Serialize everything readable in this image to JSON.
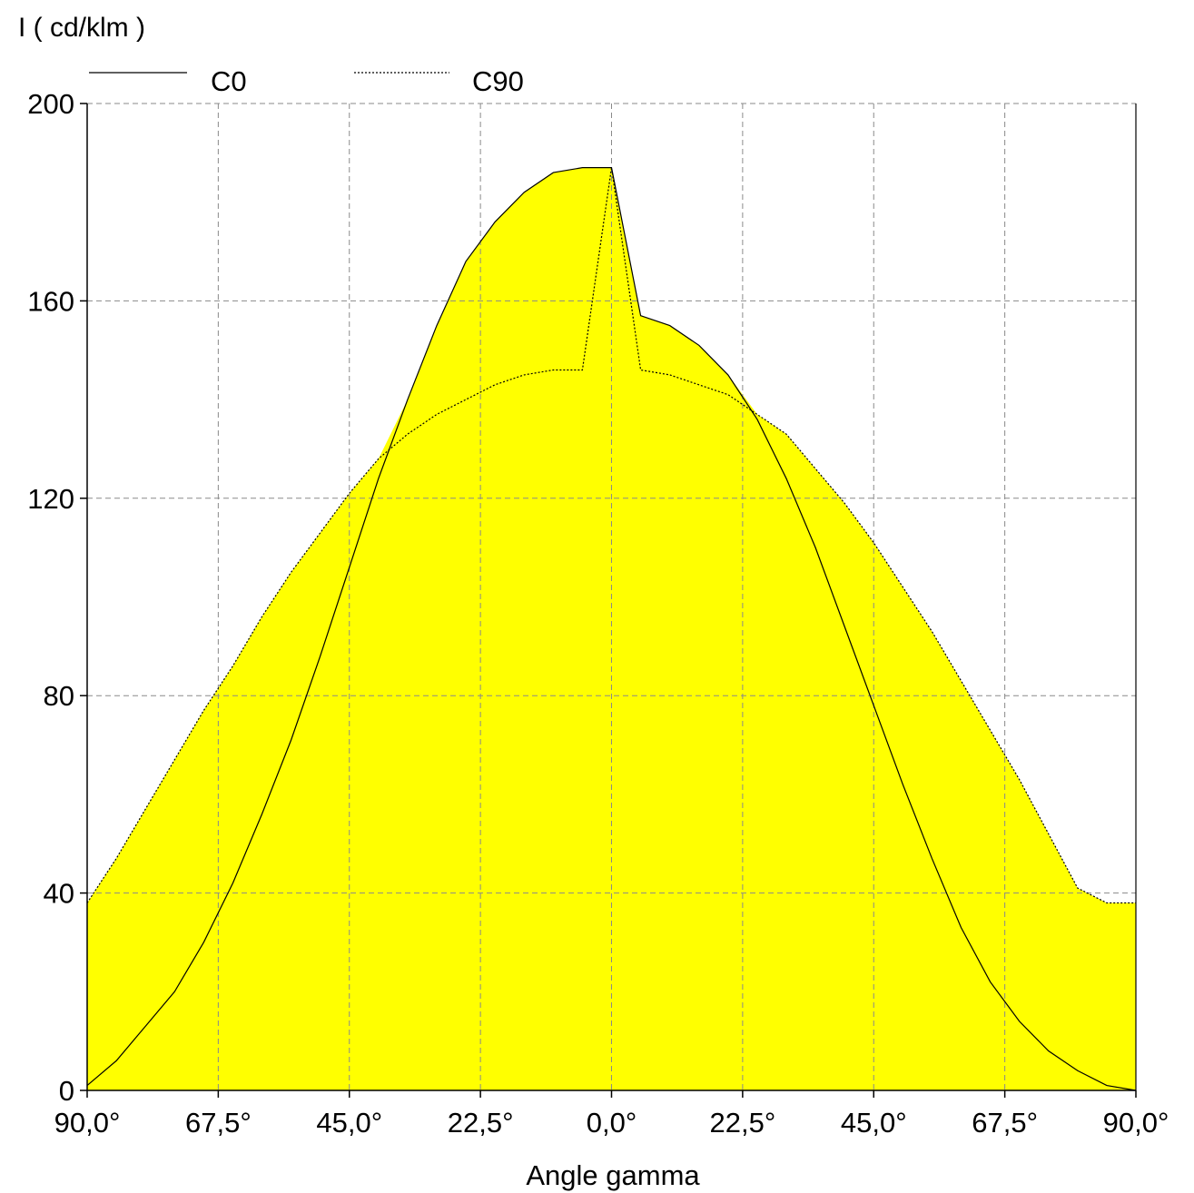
{
  "chart_data": {
    "type": "area",
    "ylabel": "I ( cd/klm )",
    "xlabel": "Angle gamma",
    "y_ticks": [
      "0",
      "40",
      "80",
      "120",
      "160",
      "200"
    ],
    "x_ticks": [
      "90,0°",
      "67,5°",
      "45,0°",
      "22,5°",
      "0,0°",
      "22,5°",
      "45,0°",
      "67,5°",
      "90,0°"
    ],
    "ylim": [
      0,
      200
    ],
    "xlim": [
      -90,
      90
    ],
    "grid": true,
    "legend_position": "top",
    "fill_color": "#ffff00",
    "series": [
      {
        "name": "C0",
        "line_style": "solid",
        "x": [
          -90,
          -85,
          -80,
          -75,
          -70,
          -65,
          -60,
          -55,
          -50,
          -45,
          -40,
          -35,
          -30,
          -25,
          -20,
          -15,
          -10,
          -5,
          0,
          5,
          10,
          15,
          20,
          25,
          30,
          35,
          40,
          45,
          50,
          55,
          60,
          65,
          70,
          75,
          80,
          85,
          90
        ],
        "y": [
          1,
          6,
          13,
          20,
          30,
          42,
          56,
          71,
          88,
          106,
          124,
          140,
          155,
          168,
          176,
          182,
          186,
          187,
          187,
          157,
          155,
          151,
          145,
          136,
          124,
          110,
          94,
          78,
          62,
          47,
          33,
          22,
          14,
          8,
          4,
          1,
          0
        ]
      },
      {
        "name": "C90",
        "line_style": "dotted",
        "x": [
          -90,
          -85,
          -80,
          -75,
          -70,
          -65,
          -60,
          -55,
          -50,
          -45,
          -40,
          -35,
          -30,
          -25,
          -20,
          -15,
          -10,
          -5,
          0,
          5,
          10,
          15,
          20,
          25,
          30,
          35,
          40,
          45,
          50,
          55,
          60,
          65,
          70,
          75,
          80,
          85,
          90
        ],
        "y": [
          38,
          47,
          57,
          67,
          77,
          86,
          96,
          105,
          113,
          121,
          128,
          133,
          137,
          140,
          143,
          145,
          146,
          146,
          187,
          146,
          145,
          143,
          141,
          137,
          133,
          126,
          119,
          111,
          102,
          93,
          83,
          73,
          63,
          52,
          41,
          38,
          38
        ]
      }
    ]
  }
}
